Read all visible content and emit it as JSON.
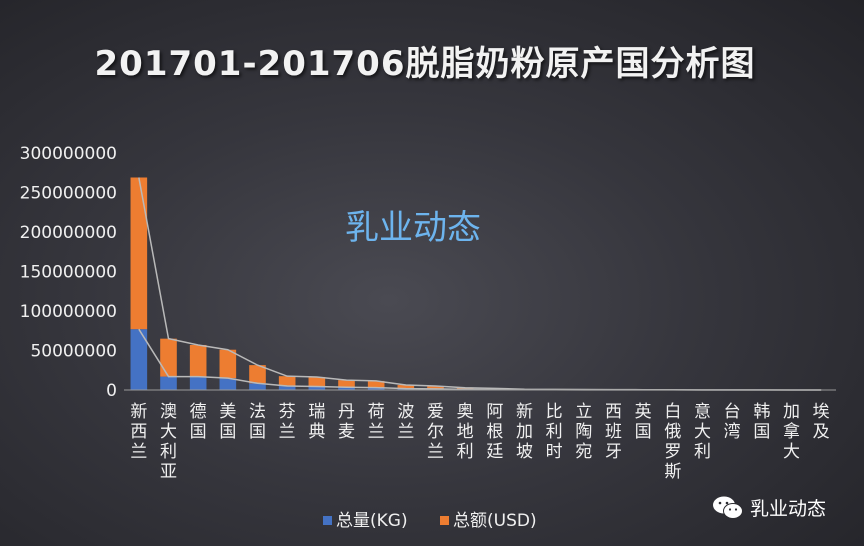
{
  "chart_data": {
    "type": "bar",
    "title": "201701-201706脱脂奶粉原产国分析图",
    "xlabel": "",
    "ylabel": "",
    "ylim": [
      0,
      300000000
    ],
    "yticks": [
      0,
      50000000,
      100000000,
      150000000,
      200000000,
      250000000,
      300000000
    ],
    "stacked": true,
    "grid": false,
    "legend_position": "bottom",
    "categories": [
      "新西兰",
      "澳大利亚",
      "德国",
      "美国",
      "法国",
      "芬兰",
      "瑞典",
      "丹麦",
      "荷兰",
      "波兰",
      "爱尔兰",
      "奥地利",
      "阿根廷",
      "新加坡",
      "比利时",
      "立陶宛",
      "西班牙",
      "英国",
      "白俄罗斯",
      "意大利",
      "台湾",
      "韩国",
      "加拿大",
      "埃及"
    ],
    "series": [
      {
        "name": "总量(KG)",
        "color": "#4472c4",
        "values": [
          77000000,
          17000000,
          17000000,
          15000000,
          8500000,
          5000000,
          4500000,
          3500000,
          3000000,
          1800000,
          1500000,
          800000,
          600000,
          300000,
          250000,
          200000,
          150000,
          100000,
          80000,
          60000,
          40000,
          30000,
          20000,
          10000
        ]
      },
      {
        "name": "总额(USD)",
        "color": "#ed7d31",
        "values": [
          192000000,
          48000000,
          40000000,
          36000000,
          23000000,
          12500000,
          12000000,
          9000000,
          8500000,
          4500000,
          3500000,
          2000000,
          1500000,
          700000,
          600000,
          500000,
          400000,
          250000,
          200000,
          150000,
          100000,
          80000,
          50000,
          30000
        ]
      }
    ]
  },
  "watermark": "乳业动态",
  "brand": {
    "icon": "wechat-icon",
    "label": "乳业动态"
  }
}
